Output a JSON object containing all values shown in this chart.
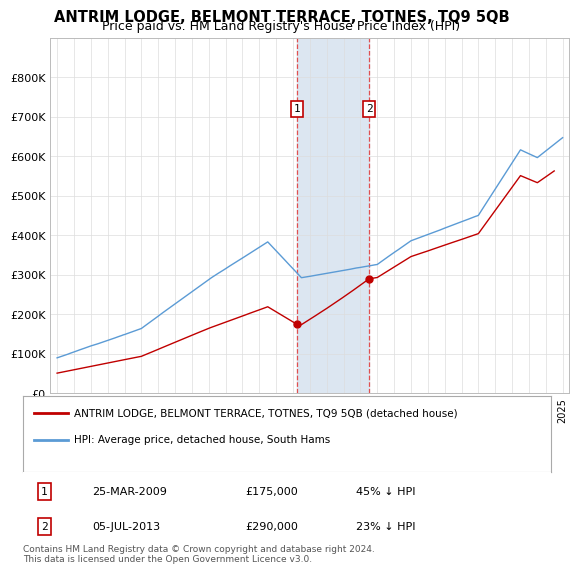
{
  "title": "ANTRIM LODGE, BELMONT TERRACE, TOTNES, TQ9 5QB",
  "subtitle": "Price paid vs. HM Land Registry's House Price Index (HPI)",
  "title_fontsize": 10.5,
  "subtitle_fontsize": 9,
  "ylim": [
    0,
    900000
  ],
  "yticks": [
    0,
    100000,
    200000,
    300000,
    400000,
    500000,
    600000,
    700000,
    800000
  ],
  "ytick_labels": [
    "£0",
    "£100K",
    "£200K",
    "£300K",
    "£400K",
    "£500K",
    "£600K",
    "£700K",
    "£800K"
  ],
  "hpi_color": "#5b9bd5",
  "price_color": "#c00000",
  "sale1_date": 2009.23,
  "sale1_price": 175000,
  "sale1_label": "1",
  "sale1_text": "25-MAR-2009",
  "sale1_amount": "£175,000",
  "sale1_pct": "45% ↓ HPI",
  "sale2_date": 2013.51,
  "sale2_price": 290000,
  "sale2_label": "2",
  "sale2_text": "05-JUL-2013",
  "sale2_amount": "£290,000",
  "sale2_pct": "23% ↓ HPI",
  "shade_color": "#dce6f1",
  "vline_color": "#e05050",
  "footnote": "Contains HM Land Registry data © Crown copyright and database right 2024.\nThis data is licensed under the Open Government Licence v3.0.",
  "legend_label1": "ANTRIM LODGE, BELMONT TERRACE, TOTNES, TQ9 5QB (detached house)",
  "legend_label2": "HPI: Average price, detached house, South Hams",
  "xstart": 1995,
  "xend": 2025
}
